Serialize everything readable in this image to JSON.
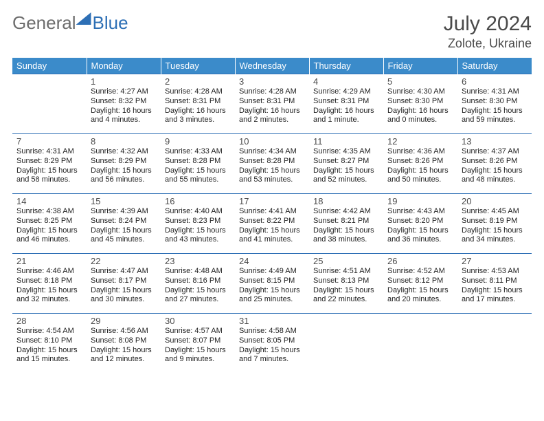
{
  "logo": {
    "text_a": "General",
    "text_b": "Blue"
  },
  "title": {
    "month": "July 2024",
    "location": "Zolote, Ukraine"
  },
  "style": {
    "header_bg": "#3b8bca",
    "header_fg": "#ffffff",
    "rule_color": "#2d6fb5",
    "page_bg": "#ffffff",
    "text_color": "#222222",
    "daynum_color": "#4a4a4a",
    "daynum_fontsize": 13,
    "cell_fontsize": 11,
    "title_fontsize": 30,
    "loc_fontsize": 18
  },
  "days_of_week": [
    "Sunday",
    "Monday",
    "Tuesday",
    "Wednesday",
    "Thursday",
    "Friday",
    "Saturday"
  ],
  "weeks": [
    [
      {
        "n": "",
        "l": ""
      },
      {
        "n": "1",
        "l": "Sunrise: 4:27 AM\nSunset: 8:32 PM\nDaylight: 16 hours and 4 minutes."
      },
      {
        "n": "2",
        "l": "Sunrise: 4:28 AM\nSunset: 8:31 PM\nDaylight: 16 hours and 3 minutes."
      },
      {
        "n": "3",
        "l": "Sunrise: 4:28 AM\nSunset: 8:31 PM\nDaylight: 16 hours and 2 minutes."
      },
      {
        "n": "4",
        "l": "Sunrise: 4:29 AM\nSunset: 8:31 PM\nDaylight: 16 hours and 1 minute."
      },
      {
        "n": "5",
        "l": "Sunrise: 4:30 AM\nSunset: 8:30 PM\nDaylight: 16 hours and 0 minutes."
      },
      {
        "n": "6",
        "l": "Sunrise: 4:31 AM\nSunset: 8:30 PM\nDaylight: 15 hours and 59 minutes."
      }
    ],
    [
      {
        "n": "7",
        "l": "Sunrise: 4:31 AM\nSunset: 8:29 PM\nDaylight: 15 hours and 58 minutes."
      },
      {
        "n": "8",
        "l": "Sunrise: 4:32 AM\nSunset: 8:29 PM\nDaylight: 15 hours and 56 minutes."
      },
      {
        "n": "9",
        "l": "Sunrise: 4:33 AM\nSunset: 8:28 PM\nDaylight: 15 hours and 55 minutes."
      },
      {
        "n": "10",
        "l": "Sunrise: 4:34 AM\nSunset: 8:28 PM\nDaylight: 15 hours and 53 minutes."
      },
      {
        "n": "11",
        "l": "Sunrise: 4:35 AM\nSunset: 8:27 PM\nDaylight: 15 hours and 52 minutes."
      },
      {
        "n": "12",
        "l": "Sunrise: 4:36 AM\nSunset: 8:26 PM\nDaylight: 15 hours and 50 minutes."
      },
      {
        "n": "13",
        "l": "Sunrise: 4:37 AM\nSunset: 8:26 PM\nDaylight: 15 hours and 48 minutes."
      }
    ],
    [
      {
        "n": "14",
        "l": "Sunrise: 4:38 AM\nSunset: 8:25 PM\nDaylight: 15 hours and 46 minutes."
      },
      {
        "n": "15",
        "l": "Sunrise: 4:39 AM\nSunset: 8:24 PM\nDaylight: 15 hours and 45 minutes."
      },
      {
        "n": "16",
        "l": "Sunrise: 4:40 AM\nSunset: 8:23 PM\nDaylight: 15 hours and 43 minutes."
      },
      {
        "n": "17",
        "l": "Sunrise: 4:41 AM\nSunset: 8:22 PM\nDaylight: 15 hours and 41 minutes."
      },
      {
        "n": "18",
        "l": "Sunrise: 4:42 AM\nSunset: 8:21 PM\nDaylight: 15 hours and 38 minutes."
      },
      {
        "n": "19",
        "l": "Sunrise: 4:43 AM\nSunset: 8:20 PM\nDaylight: 15 hours and 36 minutes."
      },
      {
        "n": "20",
        "l": "Sunrise: 4:45 AM\nSunset: 8:19 PM\nDaylight: 15 hours and 34 minutes."
      }
    ],
    [
      {
        "n": "21",
        "l": "Sunrise: 4:46 AM\nSunset: 8:18 PM\nDaylight: 15 hours and 32 minutes."
      },
      {
        "n": "22",
        "l": "Sunrise: 4:47 AM\nSunset: 8:17 PM\nDaylight: 15 hours and 30 minutes."
      },
      {
        "n": "23",
        "l": "Sunrise: 4:48 AM\nSunset: 8:16 PM\nDaylight: 15 hours and 27 minutes."
      },
      {
        "n": "24",
        "l": "Sunrise: 4:49 AM\nSunset: 8:15 PM\nDaylight: 15 hours and 25 minutes."
      },
      {
        "n": "25",
        "l": "Sunrise: 4:51 AM\nSunset: 8:13 PM\nDaylight: 15 hours and 22 minutes."
      },
      {
        "n": "26",
        "l": "Sunrise: 4:52 AM\nSunset: 8:12 PM\nDaylight: 15 hours and 20 minutes."
      },
      {
        "n": "27",
        "l": "Sunrise: 4:53 AM\nSunset: 8:11 PM\nDaylight: 15 hours and 17 minutes."
      }
    ],
    [
      {
        "n": "28",
        "l": "Sunrise: 4:54 AM\nSunset: 8:10 PM\nDaylight: 15 hours and 15 minutes."
      },
      {
        "n": "29",
        "l": "Sunrise: 4:56 AM\nSunset: 8:08 PM\nDaylight: 15 hours and 12 minutes."
      },
      {
        "n": "30",
        "l": "Sunrise: 4:57 AM\nSunset: 8:07 PM\nDaylight: 15 hours and 9 minutes."
      },
      {
        "n": "31",
        "l": "Sunrise: 4:58 AM\nSunset: 8:05 PM\nDaylight: 15 hours and 7 minutes."
      },
      {
        "n": "",
        "l": ""
      },
      {
        "n": "",
        "l": ""
      },
      {
        "n": "",
        "l": ""
      }
    ]
  ]
}
